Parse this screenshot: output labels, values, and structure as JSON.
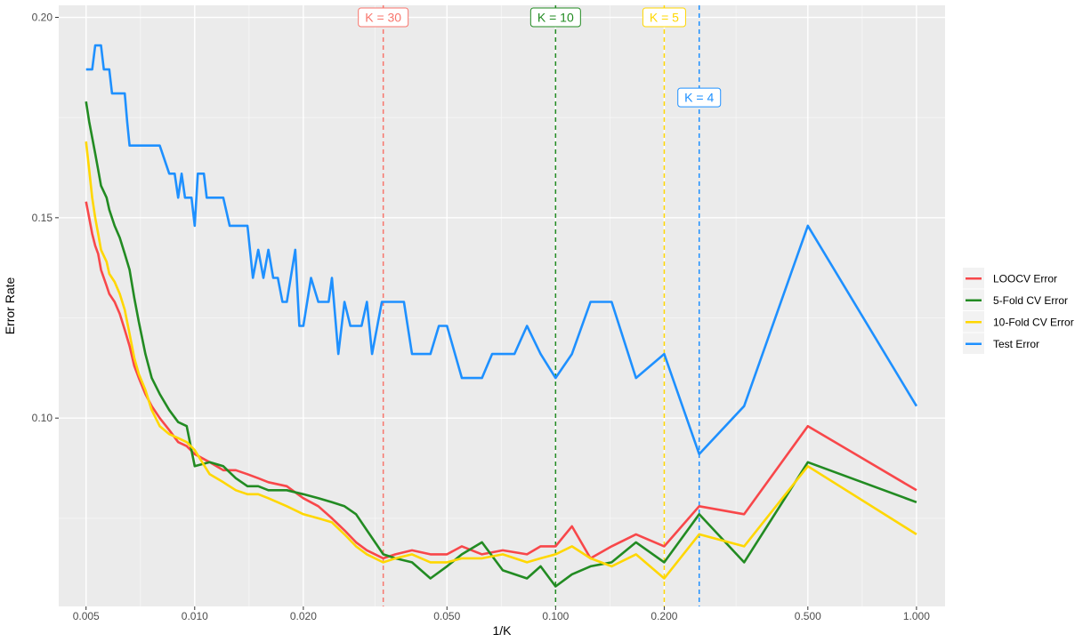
{
  "chart_data": {
    "type": "line",
    "title": "",
    "xlabel": "1/K",
    "ylabel": "Error Rate",
    "x_scale": "log10",
    "xlim": [
      0.0042,
      1.2
    ],
    "ylim": [
      0.053,
      0.203
    ],
    "x_ticks": [
      0.005,
      0.01,
      0.02,
      0.05,
      0.1,
      0.2,
      0.5,
      1.0
    ],
    "x_tick_labels": [
      "0.005",
      "0.010",
      "0.020",
      "0.050",
      "0.100",
      "0.200",
      "0.500",
      "1.000"
    ],
    "y_ticks": [
      0.1,
      0.15,
      0.2
    ],
    "y_tick_labels": [
      "0.10",
      "0.15",
      "0.20"
    ],
    "grid": true,
    "legend_position": "right",
    "background": "#EBEBEB",
    "vlines": [
      {
        "x": 0.0333,
        "label": "K = 30",
        "color": "#F8766D",
        "label_y": 0.2
      },
      {
        "x": 0.1,
        "label": "K = 10",
        "color": "#228B22",
        "label_y": 0.2
      },
      {
        "x": 0.2,
        "label": "K = 5",
        "color": "#FFD700",
        "label_y": 0.2
      },
      {
        "x": 0.25,
        "label": "K = 4",
        "color": "#1E90FF",
        "label_y": 0.18
      }
    ],
    "series": [
      {
        "name": "LOOCV Error",
        "color": "#F8474A",
        "points": [
          [
            0.005,
            0.154
          ],
          [
            0.0051,
            0.15
          ],
          [
            0.0052,
            0.146
          ],
          [
            0.0053,
            0.143
          ],
          [
            0.0054,
            0.141
          ],
          [
            0.0055,
            0.137
          ],
          [
            0.0057,
            0.133
          ],
          [
            0.0058,
            0.131
          ],
          [
            0.006,
            0.129
          ],
          [
            0.0062,
            0.126
          ],
          [
            0.0064,
            0.122
          ],
          [
            0.0066,
            0.118
          ],
          [
            0.0068,
            0.113
          ],
          [
            0.007,
            0.11
          ],
          [
            0.0073,
            0.106
          ],
          [
            0.0076,
            0.103
          ],
          [
            0.008,
            0.1
          ],
          [
            0.0085,
            0.097
          ],
          [
            0.009,
            0.094
          ],
          [
            0.0095,
            0.093
          ],
          [
            0.01,
            0.091
          ],
          [
            0.011,
            0.089
          ],
          [
            0.012,
            0.087
          ],
          [
            0.013,
            0.087
          ],
          [
            0.014,
            0.086
          ],
          [
            0.015,
            0.085
          ],
          [
            0.016,
            0.084
          ],
          [
            0.018,
            0.083
          ],
          [
            0.02,
            0.08
          ],
          [
            0.022,
            0.078
          ],
          [
            0.024,
            0.075
          ],
          [
            0.026,
            0.072
          ],
          [
            0.028,
            0.069
          ],
          [
            0.03,
            0.067
          ],
          [
            0.0333,
            0.065
          ],
          [
            0.036,
            0.066
          ],
          [
            0.04,
            0.067
          ],
          [
            0.045,
            0.066
          ],
          [
            0.05,
            0.066
          ],
          [
            0.055,
            0.068
          ],
          [
            0.0625,
            0.066
          ],
          [
            0.0714,
            0.067
          ],
          [
            0.0833,
            0.066
          ],
          [
            0.0909,
            0.068
          ],
          [
            0.1,
            0.068
          ],
          [
            0.111,
            0.073
          ],
          [
            0.125,
            0.065
          ],
          [
            0.143,
            0.068
          ],
          [
            0.167,
            0.071
          ],
          [
            0.2,
            0.068
          ],
          [
            0.25,
            0.078
          ],
          [
            0.333,
            0.076
          ],
          [
            0.5,
            0.098
          ],
          [
            1.0,
            0.082
          ]
        ]
      },
      {
        "name": "5-Fold CV Error",
        "color": "#228B22",
        "points": [
          [
            0.005,
            0.179
          ],
          [
            0.0051,
            0.174
          ],
          [
            0.0052,
            0.17
          ],
          [
            0.0053,
            0.166
          ],
          [
            0.0054,
            0.162
          ],
          [
            0.0055,
            0.158
          ],
          [
            0.0057,
            0.155
          ],
          [
            0.0058,
            0.152
          ],
          [
            0.006,
            0.148
          ],
          [
            0.0062,
            0.145
          ],
          [
            0.0064,
            0.141
          ],
          [
            0.0066,
            0.137
          ],
          [
            0.0068,
            0.13
          ],
          [
            0.007,
            0.124
          ],
          [
            0.0073,
            0.116
          ],
          [
            0.0076,
            0.11
          ],
          [
            0.008,
            0.106
          ],
          [
            0.0085,
            0.102
          ],
          [
            0.009,
            0.099
          ],
          [
            0.0095,
            0.098
          ],
          [
            0.01,
            0.088
          ],
          [
            0.011,
            0.089
          ],
          [
            0.012,
            0.088
          ],
          [
            0.013,
            0.085
          ],
          [
            0.014,
            0.083
          ],
          [
            0.015,
            0.083
          ],
          [
            0.016,
            0.082
          ],
          [
            0.018,
            0.082
          ],
          [
            0.02,
            0.081
          ],
          [
            0.022,
            0.08
          ],
          [
            0.024,
            0.079
          ],
          [
            0.026,
            0.078
          ],
          [
            0.028,
            0.076
          ],
          [
            0.03,
            0.072
          ],
          [
            0.0333,
            0.066
          ],
          [
            0.036,
            0.065
          ],
          [
            0.04,
            0.064
          ],
          [
            0.045,
            0.06
          ],
          [
            0.05,
            0.063
          ],
          [
            0.055,
            0.066
          ],
          [
            0.0625,
            0.069
          ],
          [
            0.0714,
            0.062
          ],
          [
            0.0833,
            0.06
          ],
          [
            0.0909,
            0.063
          ],
          [
            0.1,
            0.058
          ],
          [
            0.111,
            0.061
          ],
          [
            0.125,
            0.063
          ],
          [
            0.143,
            0.064
          ],
          [
            0.167,
            0.069
          ],
          [
            0.2,
            0.064
          ],
          [
            0.25,
            0.076
          ],
          [
            0.333,
            0.064
          ],
          [
            0.5,
            0.089
          ],
          [
            1.0,
            0.079
          ]
        ]
      },
      {
        "name": "10-Fold CV Error",
        "color": "#FFD700",
        "points": [
          [
            0.005,
            0.169
          ],
          [
            0.0051,
            0.162
          ],
          [
            0.0052,
            0.155
          ],
          [
            0.0053,
            0.15
          ],
          [
            0.0054,
            0.146
          ],
          [
            0.0055,
            0.142
          ],
          [
            0.0057,
            0.139
          ],
          [
            0.0058,
            0.136
          ],
          [
            0.006,
            0.134
          ],
          [
            0.0062,
            0.131
          ],
          [
            0.0064,
            0.127
          ],
          [
            0.0066,
            0.121
          ],
          [
            0.0068,
            0.115
          ],
          [
            0.007,
            0.111
          ],
          [
            0.0073,
            0.107
          ],
          [
            0.0076,
            0.102
          ],
          [
            0.008,
            0.098
          ],
          [
            0.0085,
            0.096
          ],
          [
            0.009,
            0.095
          ],
          [
            0.0095,
            0.094
          ],
          [
            0.01,
            0.092
          ],
          [
            0.011,
            0.086
          ],
          [
            0.012,
            0.084
          ],
          [
            0.013,
            0.082
          ],
          [
            0.014,
            0.081
          ],
          [
            0.015,
            0.081
          ],
          [
            0.016,
            0.08
          ],
          [
            0.018,
            0.078
          ],
          [
            0.02,
            0.076
          ],
          [
            0.022,
            0.075
          ],
          [
            0.024,
            0.074
          ],
          [
            0.026,
            0.071
          ],
          [
            0.028,
            0.068
          ],
          [
            0.03,
            0.066
          ],
          [
            0.0333,
            0.064
          ],
          [
            0.036,
            0.065
          ],
          [
            0.04,
            0.066
          ],
          [
            0.045,
            0.064
          ],
          [
            0.05,
            0.064
          ],
          [
            0.055,
            0.065
          ],
          [
            0.0625,
            0.065
          ],
          [
            0.0714,
            0.066
          ],
          [
            0.0833,
            0.064
          ],
          [
            0.0909,
            0.065
          ],
          [
            0.1,
            0.066
          ],
          [
            0.111,
            0.068
          ],
          [
            0.125,
            0.065
          ],
          [
            0.143,
            0.063
          ],
          [
            0.167,
            0.066
          ],
          [
            0.2,
            0.06
          ],
          [
            0.25,
            0.071
          ],
          [
            0.333,
            0.068
          ],
          [
            0.5,
            0.088
          ],
          [
            1.0,
            0.071
          ]
        ]
      },
      {
        "name": "Test Error",
        "color": "#1E90FF",
        "points": [
          [
            0.005,
            0.187
          ],
          [
            0.0052,
            0.187
          ],
          [
            0.0053,
            0.193
          ],
          [
            0.0055,
            0.193
          ],
          [
            0.0056,
            0.187
          ],
          [
            0.0058,
            0.187
          ],
          [
            0.0059,
            0.181
          ],
          [
            0.0061,
            0.181
          ],
          [
            0.0064,
            0.181
          ],
          [
            0.0065,
            0.174
          ],
          [
            0.0066,
            0.168
          ],
          [
            0.008,
            0.168
          ],
          [
            0.0085,
            0.161
          ],
          [
            0.0088,
            0.161
          ],
          [
            0.009,
            0.155
          ],
          [
            0.0092,
            0.161
          ],
          [
            0.0094,
            0.155
          ],
          [
            0.0098,
            0.155
          ],
          [
            0.01,
            0.148
          ],
          [
            0.0102,
            0.161
          ],
          [
            0.0106,
            0.161
          ],
          [
            0.0108,
            0.155
          ],
          [
            0.012,
            0.155
          ],
          [
            0.0125,
            0.148
          ],
          [
            0.014,
            0.148
          ],
          [
            0.0145,
            0.135
          ],
          [
            0.015,
            0.142
          ],
          [
            0.0155,
            0.135
          ],
          [
            0.016,
            0.142
          ],
          [
            0.0165,
            0.135
          ],
          [
            0.017,
            0.135
          ],
          [
            0.0175,
            0.129
          ],
          [
            0.018,
            0.129
          ],
          [
            0.019,
            0.142
          ],
          [
            0.0195,
            0.123
          ],
          [
            0.02,
            0.123
          ],
          [
            0.021,
            0.135
          ],
          [
            0.022,
            0.129
          ],
          [
            0.0235,
            0.129
          ],
          [
            0.024,
            0.135
          ],
          [
            0.025,
            0.116
          ],
          [
            0.026,
            0.129
          ],
          [
            0.027,
            0.123
          ],
          [
            0.029,
            0.123
          ],
          [
            0.03,
            0.129
          ],
          [
            0.031,
            0.116
          ],
          [
            0.033,
            0.129
          ],
          [
            0.038,
            0.129
          ],
          [
            0.04,
            0.116
          ],
          [
            0.045,
            0.116
          ],
          [
            0.0475,
            0.123
          ],
          [
            0.05,
            0.123
          ],
          [
            0.055,
            0.11
          ],
          [
            0.0625,
            0.11
          ],
          [
            0.0667,
            0.116
          ],
          [
            0.0769,
            0.116
          ],
          [
            0.0833,
            0.123
          ],
          [
            0.0909,
            0.116
          ],
          [
            0.1,
            0.11
          ],
          [
            0.111,
            0.116
          ],
          [
            0.125,
            0.129
          ],
          [
            0.143,
            0.129
          ],
          [
            0.167,
            0.11
          ],
          [
            0.2,
            0.116
          ],
          [
            0.25,
            0.091
          ],
          [
            0.333,
            0.103
          ],
          [
            0.5,
            0.148
          ],
          [
            1.0,
            0.103
          ]
        ]
      }
    ]
  }
}
